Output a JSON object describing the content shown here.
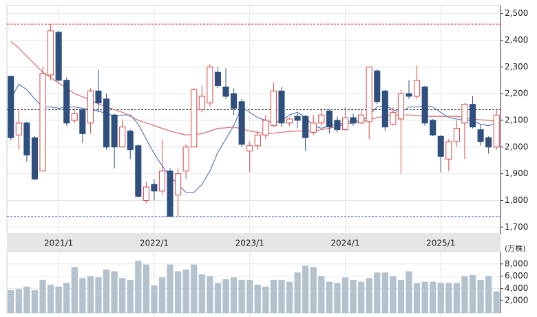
{
  "chart_data": [
    {
      "type": "candlestick",
      "categories": [
        null,
        null,
        null,
        null,
        null,
        null,
        "2021/1",
        null,
        null,
        null,
        null,
        null,
        null,
        null,
        null,
        null,
        null,
        null,
        "2022/1",
        null,
        null,
        null,
        null,
        null,
        null,
        null,
        null,
        null,
        null,
        null,
        "2023/1",
        null,
        null,
        null,
        null,
        null,
        null,
        null,
        null,
        null,
        null,
        null,
        "2024/1",
        null,
        null,
        null,
        null,
        null,
        null,
        null,
        null,
        null,
        null,
        null,
        "2025/1",
        null,
        null,
        null,
        null,
        null,
        null,
        null
      ],
      "open": [
        2265,
        2045,
        2090,
        2035,
        1910,
        2270,
        2430,
        2250,
        2100,
        2140,
        2090,
        2210,
        2180,
        2120,
        2000,
        2060,
        2005,
        1800,
        1860,
        1835,
        1910,
        1820,
        1910,
        2000,
        2140,
        2165,
        2280,
        2225,
        2200,
        2170,
        1985,
        2005,
        2045,
        2080,
        2210,
        2090,
        2115,
        2115,
        2055,
        2090,
        2135,
        2100,
        2065,
        2110,
        2090,
        2095,
        2285,
        2210,
        2085,
        2105,
        2200,
        2190,
        2225,
        2100,
        2040,
        1955,
        2020,
        2090,
        2160,
        2065,
        2035,
        2000
      ],
      "high": [
        2265,
        2140,
        2095,
        2040,
        2300,
        2460,
        2435,
        2260,
        2145,
        2145,
        2220,
        2290,
        2200,
        2125,
        2100,
        2065,
        2010,
        1870,
        1880,
        2030,
        1920,
        1920,
        2010,
        2220,
        2230,
        2310,
        2300,
        2295,
        2220,
        2180,
        2020,
        2060,
        2120,
        2240,
        2225,
        2110,
        2125,
        2120,
        2120,
        2145,
        2140,
        2115,
        2150,
        2125,
        2140,
        2300,
        2290,
        2215,
        2150,
        2215,
        2250,
        2305,
        2230,
        2105,
        2045,
        2030,
        2100,
        2165,
        2190,
        2085,
        2040,
        2140
      ],
      "low": [
        2025,
        1990,
        1945,
        1875,
        1910,
        2250,
        2245,
        2080,
        2090,
        2015,
        2050,
        2130,
        1990,
        1920,
        2000,
        1955,
        1810,
        1790,
        1800,
        1820,
        1740,
        1740,
        1880,
        2000,
        2130,
        2150,
        2220,
        2180,
        2120,
        2000,
        1905,
        1990,
        2030,
        2075,
        2075,
        2080,
        2070,
        1985,
        2045,
        2080,
        2050,
        2055,
        2060,
        2080,
        2085,
        2030,
        2160,
        2060,
        2080,
        1900,
        2180,
        2180,
        2080,
        2040,
        1905,
        1910,
        2000,
        1955,
        2070,
        2005,
        1975,
        1990
      ],
      "close": [
        2035,
        2090,
        1970,
        1880,
        2275,
        2435,
        2250,
        2090,
        2125,
        2050,
        2210,
        2165,
        2000,
        2000,
        2075,
        1990,
        1815,
        1850,
        1835,
        1910,
        1740,
        1900,
        2000,
        2215,
        2190,
        2300,
        2230,
        2190,
        2145,
        2010,
        2005,
        2045,
        2100,
        2210,
        2090,
        2105,
        2100,
        2035,
        2090,
        2120,
        2075,
        2065,
        2110,
        2090,
        2120,
        2300,
        2170,
        2075,
        2130,
        2200,
        2190,
        2250,
        2090,
        2045,
        1965,
        2020,
        2070,
        2160,
        2075,
        2020,
        2000,
        2120
      ],
      "up_color": "#d64545",
      "down_color": "#2f4f7f",
      "series": [
        {
          "color": "#d46a6a",
          "values": [
            2395,
            2370,
            2340,
            2310,
            2280,
            2260,
            2240,
            2220,
            2200,
            2188,
            2175,
            2162,
            2150,
            2140,
            2130,
            2115,
            2100,
            2090,
            2080,
            2070,
            2060,
            2052,
            2045,
            2047,
            2050,
            2060,
            2070,
            2072,
            2075,
            2068,
            2060,
            2055,
            2050,
            2052,
            2055,
            2058,
            2060,
            2060,
            2060,
            2065,
            2070,
            2078,
            2085,
            2090,
            2095,
            2102,
            2110,
            2115,
            2120,
            2120,
            2120,
            2118,
            2115,
            2115,
            2115,
            2115,
            2115,
            2110,
            2105,
            2102,
            2100,
            2095
          ]
        },
        {
          "color": "#5a78b8",
          "values": [
            2180,
            2235,
            2215,
            2180,
            2150,
            2150,
            2145,
            2150,
            2150,
            2145,
            2140,
            2135,
            2125,
            2115,
            2120,
            2120,
            2085,
            2030,
            1975,
            1930,
            1890,
            1860,
            1830,
            1830,
            1860,
            1910,
            1980,
            2030,
            2080,
            2150,
            2130,
            2110,
            2100,
            2090,
            2100,
            2120,
            2130,
            2110,
            2080,
            2070,
            2080,
            2085,
            2090,
            2100,
            2095,
            2120,
            2150,
            2155,
            2140,
            2130,
            2150,
            2150,
            2155,
            2150,
            2130,
            2110,
            2105,
            2100,
            2100,
            2085,
            2080,
            2090
          ]
        }
      ],
      "reference_lines": [
        {
          "value": 2460,
          "color": "#d9312f"
        },
        {
          "value": 2140,
          "color": "#333333"
        },
        {
          "value": 1740,
          "color": "#3a5fa8"
        }
      ],
      "ylim": [
        1675,
        2530
      ],
      "yticks": [
        {
          "value": 1700,
          "label": "1,700"
        },
        {
          "value": 1800,
          "label": "1,800"
        },
        {
          "value": 1900,
          "label": "1,900"
        },
        {
          "value": 2000,
          "label": "2,000"
        },
        {
          "value": 2100,
          "label": "2,100"
        },
        {
          "value": 2200,
          "label": "2,200"
        },
        {
          "value": 2300,
          "label": "2,300"
        },
        {
          "value": 2400,
          "label": "2,400"
        },
        {
          "value": 2500,
          "label": "2,500"
        }
      ],
      "grid": true
    },
    {
      "type": "bar",
      "y_label": "(万株)",
      "color": "#b4c2ce",
      "values": [
        3700,
        3900,
        4300,
        3700,
        5400,
        4600,
        4300,
        4900,
        7500,
        5700,
        6000,
        5800,
        7100,
        6800,
        5700,
        5400,
        8500,
        7900,
        4500,
        5800,
        7900,
        6800,
        7100,
        7900,
        6300,
        6000,
        4900,
        5500,
        5800,
        5400,
        5400,
        4600,
        4300,
        5400,
        5400,
        5100,
        6600,
        7700,
        7500,
        6000,
        5100,
        4900,
        5800,
        5400,
        5100,
        5700,
        6600,
        6600,
        6000,
        5400,
        6800,
        4900,
        5100,
        5100,
        4900,
        4900,
        4900,
        6000,
        6200,
        5400,
        6000,
        3500
      ],
      "ylim": [
        0,
        10000
      ],
      "yticks": [
        {
          "value": 2000,
          "label": "2,000"
        },
        {
          "value": 4000,
          "label": "4,000"
        },
        {
          "value": 6000,
          "label": "6,000"
        },
        {
          "value": 8000,
          "label": "8,000"
        }
      ],
      "grid": true
    }
  ]
}
